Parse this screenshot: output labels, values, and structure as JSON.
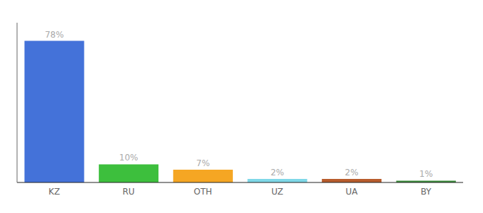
{
  "chart_data": {
    "type": "bar",
    "categories": [
      "KZ",
      "RU",
      "OTH",
      "UZ",
      "UA",
      "BY"
    ],
    "values": [
      78,
      10,
      7,
      2,
      2,
      1
    ],
    "value_labels": [
      "78%",
      "10%",
      "7%",
      "2%",
      "2%",
      "1%"
    ],
    "colors": [
      "#4472d9",
      "#3dbf3d",
      "#f5a623",
      "#7fd8e8",
      "#b85c2c",
      "#3a8c3a"
    ],
    "ylim": [
      0,
      88
    ],
    "data_labels": true,
    "tick_labels": "x"
  }
}
